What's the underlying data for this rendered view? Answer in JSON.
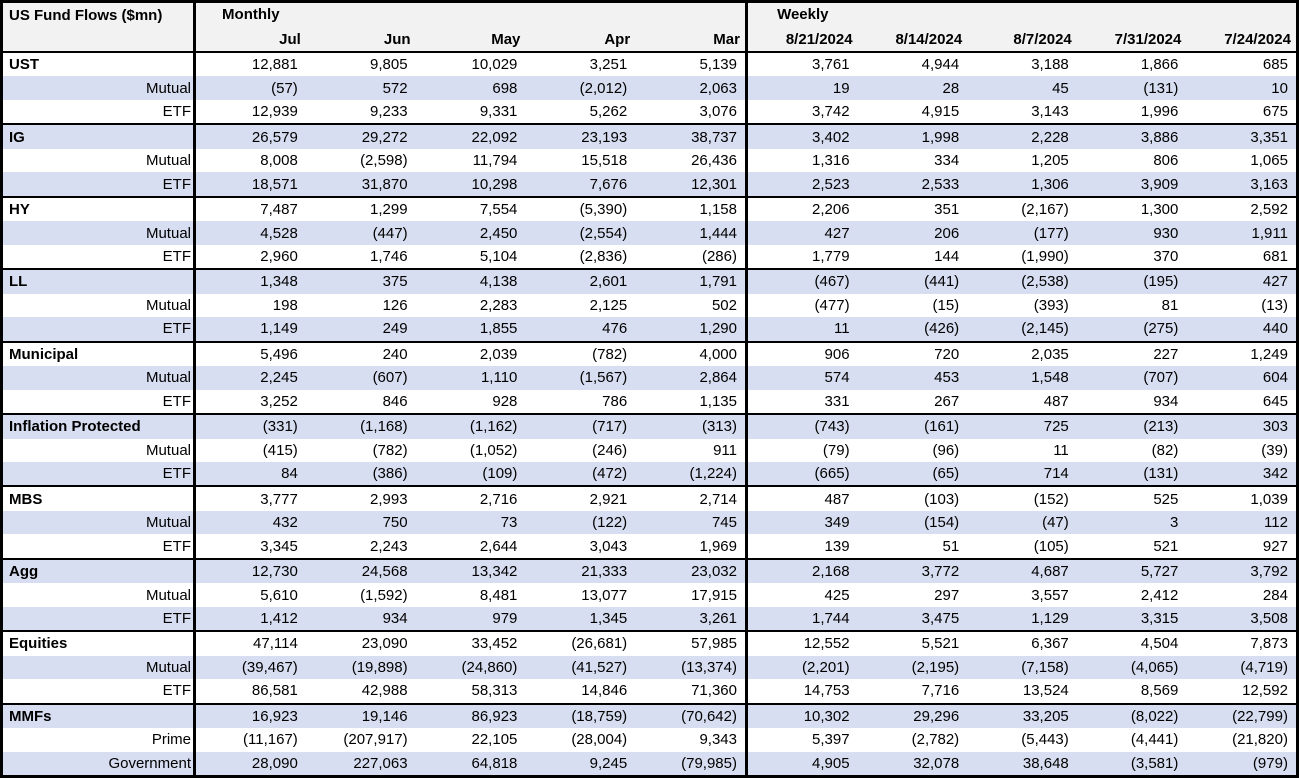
{
  "chart_data": {
    "type": "table",
    "title": "US Fund Flows ($mn)",
    "column_groups": [
      {
        "label": "Monthly",
        "columns": [
          "Jul",
          "Jun",
          "May",
          "Apr",
          "Mar"
        ]
      },
      {
        "label": "Weekly",
        "columns": [
          "8/21/2024",
          "8/14/2024",
          "8/7/2024",
          "7/31/2024",
          "7/24/2024"
        ]
      }
    ],
    "groups": [
      {
        "label": "UST",
        "monthly": [
          "12,881",
          "9,805",
          "10,029",
          "3,251",
          "5,139"
        ],
        "weekly": [
          "3,761",
          "4,944",
          "3,188",
          "1,866",
          "685"
        ],
        "subrows": [
          {
            "label": "Mutual",
            "monthly": [
              "(57)",
              "572",
              "698",
              "(2,012)",
              "2,063"
            ],
            "weekly": [
              "19",
              "28",
              "45",
              "(131)",
              "10"
            ]
          },
          {
            "label": "ETF",
            "monthly": [
              "12,939",
              "9,233",
              "9,331",
              "5,262",
              "3,076"
            ],
            "weekly": [
              "3,742",
              "4,915",
              "3,143",
              "1,996",
              "675"
            ]
          }
        ]
      },
      {
        "label": "IG",
        "monthly": [
          "26,579",
          "29,272",
          "22,092",
          "23,193",
          "38,737"
        ],
        "weekly": [
          "3,402",
          "1,998",
          "2,228",
          "3,886",
          "3,351"
        ],
        "subrows": [
          {
            "label": "Mutual",
            "monthly": [
              "8,008",
              "(2,598)",
              "11,794",
              "15,518",
              "26,436"
            ],
            "weekly": [
              "1,316",
              "334",
              "1,205",
              "806",
              "1,065"
            ]
          },
          {
            "label": "ETF",
            "monthly": [
              "18,571",
              "31,870",
              "10,298",
              "7,676",
              "12,301"
            ],
            "weekly": [
              "2,523",
              "2,533",
              "1,306",
              "3,909",
              "3,163"
            ]
          }
        ]
      },
      {
        "label": "HY",
        "monthly": [
          "7,487",
          "1,299",
          "7,554",
          "(5,390)",
          "1,158"
        ],
        "weekly": [
          "2,206",
          "351",
          "(2,167)",
          "1,300",
          "2,592"
        ],
        "subrows": [
          {
            "label": "Mutual",
            "monthly": [
              "4,528",
              "(447)",
              "2,450",
              "(2,554)",
              "1,444"
            ],
            "weekly": [
              "427",
              "206",
              "(177)",
              "930",
              "1,911"
            ]
          },
          {
            "label": "ETF",
            "monthly": [
              "2,960",
              "1,746",
              "5,104",
              "(2,836)",
              "(286)"
            ],
            "weekly": [
              "1,779",
              "144",
              "(1,990)",
              "370",
              "681"
            ]
          }
        ]
      },
      {
        "label": "LL",
        "monthly": [
          "1,348",
          "375",
          "4,138",
          "2,601",
          "1,791"
        ],
        "weekly": [
          "(467)",
          "(441)",
          "(2,538)",
          "(195)",
          "427"
        ],
        "subrows": [
          {
            "label": "Mutual",
            "monthly": [
              "198",
              "126",
              "2,283",
              "2,125",
              "502"
            ],
            "weekly": [
              "(477)",
              "(15)",
              "(393)",
              "81",
              "(13)"
            ]
          },
          {
            "label": "ETF",
            "monthly": [
              "1,149",
              "249",
              "1,855",
              "476",
              "1,290"
            ],
            "weekly": [
              "11",
              "(426)",
              "(2,145)",
              "(275)",
              "440"
            ]
          }
        ]
      },
      {
        "label": "Municipal",
        "monthly": [
          "5,496",
          "240",
          "2,039",
          "(782)",
          "4,000"
        ],
        "weekly": [
          "906",
          "720",
          "2,035",
          "227",
          "1,249"
        ],
        "subrows": [
          {
            "label": "Mutual",
            "monthly": [
              "2,245",
              "(607)",
              "1,110",
              "(1,567)",
              "2,864"
            ],
            "weekly": [
              "574",
              "453",
              "1,548",
              "(707)",
              "604"
            ]
          },
          {
            "label": "ETF",
            "monthly": [
              "3,252",
              "846",
              "928",
              "786",
              "1,135"
            ],
            "weekly": [
              "331",
              "267",
              "487",
              "934",
              "645"
            ]
          }
        ]
      },
      {
        "label": "Inflation Protected",
        "monthly": [
          "(331)",
          "(1,168)",
          "(1,162)",
          "(717)",
          "(313)"
        ],
        "weekly": [
          "(743)",
          "(161)",
          "725",
          "(213)",
          "303"
        ],
        "subrows": [
          {
            "label": "Mutual",
            "monthly": [
              "(415)",
              "(782)",
              "(1,052)",
              "(246)",
              "911"
            ],
            "weekly": [
              "(79)",
              "(96)",
              "11",
              "(82)",
              "(39)"
            ]
          },
          {
            "label": "ETF",
            "monthly": [
              "84",
              "(386)",
              "(109)",
              "(472)",
              "(1,224)"
            ],
            "weekly": [
              "(665)",
              "(65)",
              "714",
              "(131)",
              "342"
            ]
          }
        ]
      },
      {
        "label": "MBS",
        "monthly": [
          "3,777",
          "2,993",
          "2,716",
          "2,921",
          "2,714"
        ],
        "weekly": [
          "487",
          "(103)",
          "(152)",
          "525",
          "1,039"
        ],
        "subrows": [
          {
            "label": "Mutual",
            "monthly": [
              "432",
              "750",
              "73",
              "(122)",
              "745"
            ],
            "weekly": [
              "349",
              "(154)",
              "(47)",
              "3",
              "112"
            ]
          },
          {
            "label": "ETF",
            "monthly": [
              "3,345",
              "2,243",
              "2,644",
              "3,043",
              "1,969"
            ],
            "weekly": [
              "139",
              "51",
              "(105)",
              "521",
              "927"
            ]
          }
        ]
      },
      {
        "label": "Agg",
        "monthly": [
          "12,730",
          "24,568",
          "13,342",
          "21,333",
          "23,032"
        ],
        "weekly": [
          "2,168",
          "3,772",
          "4,687",
          "5,727",
          "3,792"
        ],
        "subrows": [
          {
            "label": "Mutual",
            "monthly": [
              "5,610",
              "(1,592)",
              "8,481",
              "13,077",
              "17,915"
            ],
            "weekly": [
              "425",
              "297",
              "3,557",
              "2,412",
              "284"
            ]
          },
          {
            "label": "ETF",
            "monthly": [
              "1,412",
              "934",
              "979",
              "1,345",
              "3,261"
            ],
            "weekly": [
              "1,744",
              "3,475",
              "1,129",
              "3,315",
              "3,508"
            ]
          }
        ]
      },
      {
        "label": "Equities",
        "monthly": [
          "47,114",
          "23,090",
          "33,452",
          "(26,681)",
          "57,985"
        ],
        "weekly": [
          "12,552",
          "5,521",
          "6,367",
          "4,504",
          "7,873"
        ],
        "subrows": [
          {
            "label": "Mutual",
            "monthly": [
              "(39,467)",
              "(19,898)",
              "(24,860)",
              "(41,527)",
              "(13,374)"
            ],
            "weekly": [
              "(2,201)",
              "(2,195)",
              "(7,158)",
              "(4,065)",
              "(4,719)"
            ]
          },
          {
            "label": "ETF",
            "monthly": [
              "86,581",
              "42,988",
              "58,313",
              "14,846",
              "71,360"
            ],
            "weekly": [
              "14,753",
              "7,716",
              "13,524",
              "8,569",
              "12,592"
            ]
          }
        ]
      },
      {
        "label": "MMFs",
        "monthly": [
          "16,923",
          "19,146",
          "86,923",
          "(18,759)",
          "(70,642)"
        ],
        "weekly": [
          "10,302",
          "29,296",
          "33,205",
          "(8,022)",
          "(22,799)"
        ],
        "subrows": [
          {
            "label": "Prime",
            "monthly": [
              "(11,167)",
              "(207,917)",
              "22,105",
              "(28,004)",
              "9,343"
            ],
            "weekly": [
              "5,397",
              "(2,782)",
              "(5,443)",
              "(4,441)",
              "(21,820)"
            ]
          },
          {
            "label": "Government",
            "monthly": [
              "28,090",
              "227,063",
              "64,818",
              "9,245",
              "(79,985)"
            ],
            "weekly": [
              "4,905",
              "32,078",
              "38,648",
              "(3,581)",
              "(979)"
            ]
          }
        ]
      }
    ],
    "colors": {
      "band": "#d8def1",
      "header_bg": "#f2f2f2",
      "border": "#000000",
      "text": "#000000"
    }
  }
}
